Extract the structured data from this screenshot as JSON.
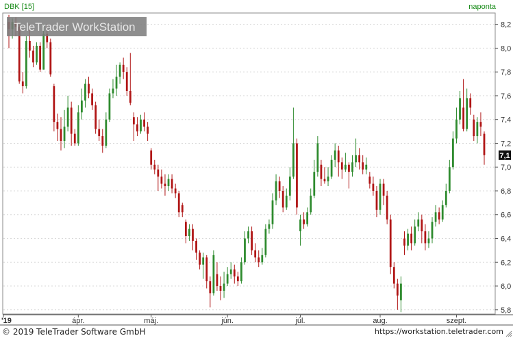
{
  "chart_data": {
    "type": "candlestick",
    "symbol": "DBK [15]",
    "interval": "naponta",
    "watermark": "TeleTrader WorkStation",
    "year_label": "'19",
    "months": [
      "ápr.",
      "máj.",
      "jún.",
      "júl.",
      "aug.",
      "szept."
    ],
    "yticks": [
      "8,2",
      "8,0",
      "7,8",
      "7,6",
      "7,4",
      "7,2",
      "7,0",
      "6,8",
      "6,6",
      "6,4",
      "6,2",
      "6,0",
      "5,8"
    ],
    "ylim": [
      5.77,
      8.29
    ],
    "last_price": "7,1",
    "grid": true,
    "candles": [
      [
        8.22,
        8.16,
        8.28,
        8.0
      ],
      [
        8.16,
        8.22,
        8.25,
        8.08
      ],
      [
        8.22,
        8.18,
        8.26,
        8.1
      ],
      [
        8.18,
        7.72,
        8.2,
        7.7
      ],
      [
        7.72,
        7.68,
        7.8,
        7.62
      ],
      [
        7.68,
        8.06,
        8.1,
        7.66
      ],
      [
        8.06,
        7.98,
        8.2,
        7.92
      ],
      [
        7.98,
        7.88,
        8.02,
        7.84
      ],
      [
        7.88,
        8.02,
        8.05,
        7.86
      ],
      [
        8.02,
        7.82,
        8.05,
        7.8
      ],
      [
        7.82,
        8.12,
        8.2,
        7.82
      ],
      [
        8.12,
        8.05,
        8.2,
        8.0
      ],
      [
        8.05,
        7.78,
        8.08,
        7.76
      ],
      [
        7.68,
        7.38,
        7.7,
        7.3
      ],
      [
        7.38,
        7.32,
        7.45,
        7.22
      ],
      [
        7.32,
        7.22,
        7.42,
        7.14
      ],
      [
        7.22,
        7.34,
        7.48,
        7.16
      ],
      [
        7.34,
        7.5,
        7.6,
        7.3
      ],
      [
        7.5,
        7.28,
        7.55,
        7.18
      ],
      [
        7.28,
        7.2,
        7.32,
        7.18
      ],
      [
        7.2,
        7.46,
        7.52,
        7.18
      ],
      [
        7.46,
        7.56,
        7.66,
        7.4
      ],
      [
        7.56,
        7.7,
        7.74,
        7.5
      ],
      [
        7.7,
        7.62,
        7.76,
        7.58
      ],
      [
        7.62,
        7.52,
        7.66,
        7.48
      ],
      [
        7.52,
        7.32,
        7.55,
        7.28
      ],
      [
        7.32,
        7.26,
        7.4,
        7.22
      ],
      [
        7.26,
        7.18,
        7.32,
        7.12
      ],
      [
        7.18,
        7.4,
        7.46,
        7.16
      ],
      [
        7.4,
        7.62,
        7.66,
        7.38
      ],
      [
        7.62,
        7.66,
        7.74,
        7.58
      ],
      [
        7.66,
        7.76,
        7.86,
        7.6
      ],
      [
        7.76,
        7.86,
        7.88,
        7.7
      ],
      [
        7.86,
        7.8,
        7.92,
        7.74
      ],
      [
        7.8,
        7.64,
        7.84,
        7.6
      ],
      [
        7.64,
        7.54,
        7.96,
        7.52
      ],
      [
        7.42,
        7.36,
        7.46,
        7.22
      ],
      [
        7.36,
        7.3,
        7.42,
        7.26
      ],
      [
        7.3,
        7.4,
        7.44,
        7.28
      ],
      [
        7.4,
        7.34,
        7.46,
        7.3
      ],
      [
        7.34,
        7.28,
        7.38,
        7.22
      ],
      [
        7.14,
        7.02,
        7.16,
        6.98
      ],
      [
        7.02,
        6.98,
        7.06,
        6.94
      ],
      [
        6.98,
        6.92,
        7.02,
        6.8
      ],
      [
        6.92,
        6.86,
        6.98,
        6.82
      ],
      [
        6.86,
        6.84,
        6.94,
        6.76
      ],
      [
        6.84,
        6.9,
        6.94,
        6.8
      ],
      [
        6.9,
        6.82,
        6.94,
        6.78
      ],
      [
        6.82,
        6.78,
        6.86,
        6.74
      ],
      [
        6.78,
        6.62,
        6.8,
        6.58
      ],
      [
        6.68,
        6.62,
        6.7,
        6.58
      ],
      [
        6.54,
        6.42,
        6.56,
        6.36
      ],
      [
        6.42,
        6.48,
        6.52,
        6.38
      ],
      [
        6.48,
        6.38,
        6.52,
        6.3
      ],
      [
        6.38,
        6.28,
        6.4,
        6.22
      ],
      [
        6.28,
        6.18,
        6.3,
        6.14
      ],
      [
        6.18,
        6.24,
        6.28,
        6.06
      ],
      [
        6.24,
        6.04,
        6.26,
        5.98
      ],
      [
        6.04,
        5.94,
        6.08,
        5.82
      ],
      [
        5.94,
        6.26,
        6.3,
        5.92
      ],
      [
        6.1,
        6.0,
        6.2,
        5.96
      ],
      [
        6.0,
        5.96,
        6.08,
        5.88
      ],
      [
        5.96,
        6.02,
        6.12,
        5.9
      ],
      [
        6.02,
        6.1,
        6.16,
        6.0
      ],
      [
        6.1,
        6.14,
        6.2,
        6.06
      ],
      [
        6.14,
        6.08,
        6.18,
        6.02
      ],
      [
        6.08,
        6.04,
        6.12,
        6.0
      ],
      [
        6.04,
        6.2,
        6.24,
        6.02
      ],
      [
        6.2,
        6.4,
        6.46,
        6.18
      ],
      [
        6.4,
        6.46,
        6.5,
        6.36
      ],
      [
        6.46,
        6.3,
        6.5,
        6.26
      ],
      [
        6.3,
        6.24,
        6.36,
        6.2
      ],
      [
        6.24,
        6.2,
        6.3,
        6.16
      ],
      [
        6.2,
        6.26,
        6.32,
        6.18
      ],
      [
        6.26,
        6.48,
        6.52,
        6.24
      ],
      [
        6.48,
        6.52,
        6.56,
        6.44
      ],
      [
        6.52,
        6.72,
        6.78,
        6.48
      ],
      [
        6.72,
        6.88,
        6.94,
        6.68
      ],
      [
        6.88,
        6.8,
        6.92,
        6.74
      ],
      [
        6.8,
        6.66,
        6.84,
        6.62
      ],
      [
        6.66,
        6.76,
        6.82,
        6.64
      ],
      [
        6.76,
        6.92,
        7.0,
        6.72
      ],
      [
        6.92,
        7.2,
        7.5,
        6.9
      ],
      [
        7.2,
        6.66,
        7.24,
        6.6
      ],
      [
        6.46,
        6.56,
        6.6,
        6.34
      ],
      [
        6.56,
        6.52,
        6.62,
        6.48
      ],
      [
        6.52,
        6.62,
        6.66,
        6.5
      ],
      [
        6.62,
        6.76,
        6.82,
        6.6
      ],
      [
        6.76,
        6.96,
        7.06,
        6.74
      ],
      [
        6.96,
        7.2,
        7.26,
        6.92
      ],
      [
        7.02,
        6.9,
        7.06,
        6.84
      ],
      [
        6.9,
        6.88,
        7.0,
        6.86
      ],
      [
        6.88,
        6.92,
        7.0,
        6.84
      ],
      [
        6.92,
        7.06,
        7.1,
        6.9
      ],
      [
        7.06,
        7.14,
        7.2,
        7.0
      ],
      [
        7.14,
        7.04,
        7.18,
        6.92
      ],
      [
        7.04,
        6.98,
        7.08,
        6.9
      ],
      [
        6.98,
        7.02,
        7.12,
        6.96
      ],
      [
        7.02,
        6.96,
        7.04,
        6.82
      ],
      [
        6.96,
        7.04,
        7.1,
        6.92
      ],
      [
        7.04,
        7.1,
        7.24,
        7.0
      ],
      [
        7.1,
        7.04,
        7.16,
        6.98
      ],
      [
        7.04,
        6.98,
        7.1,
        6.94
      ],
      [
        6.98,
        7.02,
        7.08,
        6.94
      ],
      [
        6.92,
        6.86,
        6.96,
        6.82
      ],
      [
        6.86,
        6.8,
        6.92,
        6.76
      ],
      [
        6.8,
        6.64,
        6.84,
        6.58
      ],
      [
        6.64,
        6.86,
        6.9,
        6.6
      ],
      [
        6.86,
        6.76,
        6.9,
        6.68
      ],
      [
        6.76,
        6.56,
        6.8,
        6.52
      ],
      [
        6.56,
        6.16,
        6.6,
        6.1
      ],
      [
        6.16,
        6.02,
        6.2,
        5.98
      ],
      [
        6.02,
        5.92,
        6.06,
        5.8
      ],
      [
        5.88,
        6.02,
        6.08,
        5.78
      ],
      [
        6.4,
        6.34,
        6.46,
        6.26
      ],
      [
        6.34,
        6.44,
        6.48,
        6.3
      ],
      [
        6.44,
        6.36,
        6.5,
        6.3
      ],
      [
        6.36,
        6.5,
        6.56,
        6.34
      ],
      [
        6.5,
        6.56,
        6.62,
        6.46
      ],
      [
        6.56,
        6.46,
        6.6,
        6.36
      ],
      [
        6.46,
        6.36,
        6.52,
        6.3
      ],
      [
        6.36,
        6.4,
        6.46,
        6.32
      ],
      [
        6.4,
        6.54,
        6.58,
        6.36
      ],
      [
        6.54,
        6.62,
        6.68,
        6.5
      ],
      [
        6.62,
        6.56,
        6.66,
        6.52
      ],
      [
        6.56,
        6.68,
        6.72,
        6.54
      ],
      [
        6.68,
        6.8,
        6.86,
        6.66
      ],
      [
        6.8,
        7.0,
        7.06,
        6.78
      ],
      [
        7.0,
        7.24,
        7.3,
        6.98
      ],
      [
        7.24,
        7.4,
        7.5,
        7.2
      ],
      [
        7.4,
        7.58,
        7.64,
        7.36
      ],
      [
        7.5,
        7.32,
        7.74,
        7.3
      ],
      [
        7.32,
        7.58,
        7.66,
        7.3
      ],
      [
        7.58,
        7.5,
        7.62,
        7.44
      ],
      [
        7.4,
        7.26,
        7.44,
        7.22
      ],
      [
        7.26,
        7.38,
        7.42,
        7.2
      ],
      [
        7.38,
        7.34,
        7.46,
        7.26
      ],
      [
        7.28,
        7.1,
        7.3,
        7.02
      ]
    ]
  },
  "footer": {
    "copyright": "© 2019 TeleTrader Software GmbH",
    "url": "https://workstation.teletrader.com"
  },
  "colors": {
    "up": "#2e8b2e",
    "down": "#b01515",
    "grid": "#d9d9d9",
    "axis_text": "#333333",
    "watermark_bg": "#7a7a7a",
    "symbol_text": "#1a8c1a",
    "interval_text": "#1a8c1a"
  }
}
